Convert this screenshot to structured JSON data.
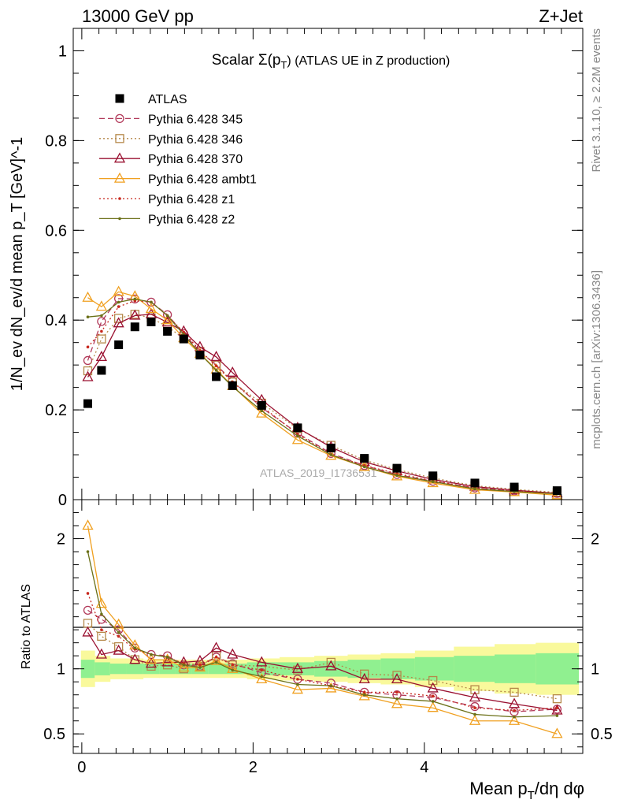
{
  "header": {
    "energy_label": "13000 GeV pp",
    "process_label": "Z+Jet",
    "rivet_label": "Rivet 3.1.10, ≥ 2.2M events",
    "site_label": "mcplots.cern.ch [arXiv:1306.3436]",
    "analysis_watermark": "ATLAS_2019_I1736531"
  },
  "chart_data": [
    {
      "type": "scatter",
      "panel": "main",
      "title": "Scalar Σ(p_T) (ATLAS UE in Z production)",
      "title_parts": {
        "pre": "Scalar Σ(p",
        "sub": "T",
        "post": ") (ATLAS UE in Z production)"
      },
      "ylabel": "1/N_ev dN_ev/d mean p_T [GeV]^-1",
      "xlabel": "",
      "xlim": [
        -0.1,
        5.85
      ],
      "ylim": [
        0,
        1.05
      ],
      "yticks": [
        0,
        0.2,
        0.4,
        0.6,
        0.8,
        1
      ],
      "ytick_labels": [
        "0",
        "0.2",
        "0.4",
        "0.6",
        "0.8",
        "1"
      ],
      "grid": false,
      "legend_position": "top-left",
      "x": [
        0.07,
        0.23,
        0.43,
        0.62,
        0.81,
        1.0,
        1.19,
        1.38,
        1.57,
        1.76,
        2.1,
        2.52,
        2.91,
        3.3,
        3.68,
        4.1,
        4.59,
        5.05,
        5.55
      ],
      "series": [
        {
          "name": "ATLAS",
          "color": "#000000",
          "style": "data",
          "marker": "square",
          "values": [
            0.214,
            0.288,
            0.345,
            0.385,
            0.396,
            0.375,
            0.358,
            0.322,
            0.274,
            0.254,
            0.21,
            0.16,
            0.115,
            0.092,
            0.07,
            0.053,
            0.037,
            0.028,
            0.02
          ]
        },
        {
          "name": "Pythia 6.428 345",
          "color": "#b23a5a",
          "style": "dashed",
          "marker": "open-circle",
          "values": [
            0.31,
            0.397,
            0.448,
            0.447,
            0.44,
            0.412,
            0.37,
            0.33,
            0.3,
            0.265,
            0.205,
            0.148,
            0.103,
            0.076,
            0.056,
            0.041,
            0.026,
            0.019,
            0.014
          ]
        },
        {
          "name": "Pythia 6.428 346",
          "color": "#b5884a",
          "style": "dotted",
          "marker": "open-square",
          "values": [
            0.287,
            0.358,
            0.404,
            0.413,
            0.405,
            0.385,
            0.36,
            0.33,
            0.3,
            0.262,
            0.215,
            0.158,
            0.121,
            0.088,
            0.067,
            0.048,
            0.031,
            0.023,
            0.016
          ]
        },
        {
          "name": "Pythia 6.428 370",
          "color": "#9a1030",
          "style": "solid",
          "marker": "open-triangle",
          "values": [
            0.273,
            0.318,
            0.393,
            0.41,
            0.413,
            0.395,
            0.375,
            0.34,
            0.318,
            0.283,
            0.222,
            0.16,
            0.117,
            0.084,
            0.064,
            0.045,
            0.029,
            0.021,
            0.014
          ]
        },
        {
          "name": "Pythia 6.428 ambt1",
          "color": "#f0a020",
          "style": "solid",
          "marker": "open-triangle",
          "values": [
            0.45,
            0.43,
            0.463,
            0.453,
            0.425,
            0.4,
            0.36,
            0.325,
            0.29,
            0.253,
            0.192,
            0.133,
            0.098,
            0.073,
            0.052,
            0.037,
            0.022,
            0.017,
            0.01
          ]
        },
        {
          "name": "Pythia 6.428 z1",
          "color": "#c8281e",
          "style": "dotted",
          "marker": "dot",
          "values": [
            0.34,
            0.375,
            0.43,
            0.443,
            0.44,
            0.41,
            0.373,
            0.332,
            0.298,
            0.262,
            0.208,
            0.146,
            0.1,
            0.076,
            0.058,
            0.042,
            0.026,
            0.019,
            0.014
          ]
        },
        {
          "name": "Pythia 6.428 z2",
          "color": "#6b7018",
          "style": "solid",
          "marker": "dot",
          "values": [
            0.407,
            0.41,
            0.44,
            0.447,
            0.44,
            0.41,
            0.368,
            0.325,
            0.288,
            0.252,
            0.198,
            0.142,
            0.1,
            0.073,
            0.054,
            0.04,
            0.024,
            0.018,
            0.013
          ]
        }
      ]
    },
    {
      "type": "scatter",
      "panel": "ratio",
      "ylabel": "Ratio to ATLAS",
      "xlabel": "Mean p_T/dη dφ",
      "xlabel_parts": {
        "pre": "Mean p",
        "sub": "T",
        "post": "/dη dφ"
      },
      "xlim": [
        -0.1,
        5.85
      ],
      "ylim": [
        0.35,
        2.3
      ],
      "yticks": [
        0.5,
        1,
        2
      ],
      "ytick_labels": [
        "0.5",
        "1",
        "2"
      ],
      "xticks": [
        0,
        2,
        4
      ],
      "xtick_labels": [
        "0",
        "2",
        "4"
      ],
      "x": [
        0.07,
        0.23,
        0.43,
        0.62,
        0.81,
        1.0,
        1.19,
        1.38,
        1.57,
        1.76,
        2.1,
        2.52,
        2.91,
        3.3,
        3.68,
        4.1,
        4.59,
        5.05,
        5.55
      ],
      "band_inner": [
        0.07,
        0.05,
        0.04,
        0.04,
        0.04,
        0.04,
        0.04,
        0.04,
        0.04,
        0.04,
        0.05,
        0.05,
        0.06,
        0.07,
        0.08,
        0.09,
        0.1,
        0.11,
        0.12
      ],
      "band_outer": [
        0.14,
        0.1,
        0.08,
        0.08,
        0.07,
        0.07,
        0.07,
        0.07,
        0.07,
        0.07,
        0.08,
        0.09,
        0.1,
        0.11,
        0.12,
        0.14,
        0.17,
        0.19,
        0.2
      ],
      "band_colors": {
        "inner": "#90f090",
        "outer": "#f9f99c"
      },
      "series": [
        {
          "name": "Pythia 6.428 345",
          "color": "#b23a5a",
          "style": "dashed",
          "marker": "open-circle",
          "values": [
            1.45,
            1.38,
            1.3,
            1.16,
            1.11,
            1.1,
            1.03,
            1.02,
            1.09,
            1.04,
            0.97,
            0.92,
            0.89,
            0.82,
            0.8,
            0.78,
            0.71,
            0.67,
            0.69
          ]
        },
        {
          "name": "Pythia 6.428 346",
          "color": "#b5884a",
          "style": "dotted",
          "marker": "open-square",
          "values": [
            1.35,
            1.25,
            1.17,
            1.07,
            1.02,
            1.03,
            1.0,
            1.02,
            1.1,
            1.03,
            1.02,
            0.99,
            1.05,
            0.96,
            0.95,
            0.91,
            0.84,
            0.82,
            0.77
          ]
        },
        {
          "name": "Pythia 6.428 370",
          "color": "#9a1030",
          "style": "solid",
          "marker": "open-triangle",
          "values": [
            1.28,
            1.11,
            1.14,
            1.07,
            1.04,
            1.05,
            1.05,
            1.06,
            1.16,
            1.11,
            1.05,
            1.0,
            1.02,
            0.92,
            0.92,
            0.85,
            0.78,
            0.73,
            0.68
          ]
        },
        {
          "name": "Pythia 6.428 ambt1",
          "color": "#f0a020",
          "style": "solid",
          "marker": "open-triangle",
          "values": [
            2.1,
            1.5,
            1.34,
            1.18,
            1.07,
            1.07,
            1.01,
            1.01,
            1.06,
            1.0,
            0.92,
            0.84,
            0.85,
            0.79,
            0.73,
            0.7,
            0.6,
            0.6,
            0.5
          ]
        },
        {
          "name": "Pythia 6.428 z1",
          "color": "#c8281e",
          "style": "dotted",
          "marker": "dot",
          "values": [
            1.58,
            1.3,
            1.25,
            1.15,
            1.11,
            1.09,
            1.04,
            1.03,
            1.09,
            1.03,
            0.99,
            0.92,
            0.87,
            0.82,
            0.82,
            0.79,
            0.7,
            0.68,
            0.7
          ]
        },
        {
          "name": "Pythia 6.428 z2",
          "color": "#6b7018",
          "style": "solid",
          "marker": "dot",
          "values": [
            1.9,
            1.42,
            1.28,
            1.16,
            1.11,
            1.09,
            1.03,
            1.01,
            1.05,
            0.99,
            0.94,
            0.88,
            0.87,
            0.8,
            0.77,
            0.75,
            0.65,
            0.63,
            0.64
          ]
        }
      ]
    }
  ]
}
